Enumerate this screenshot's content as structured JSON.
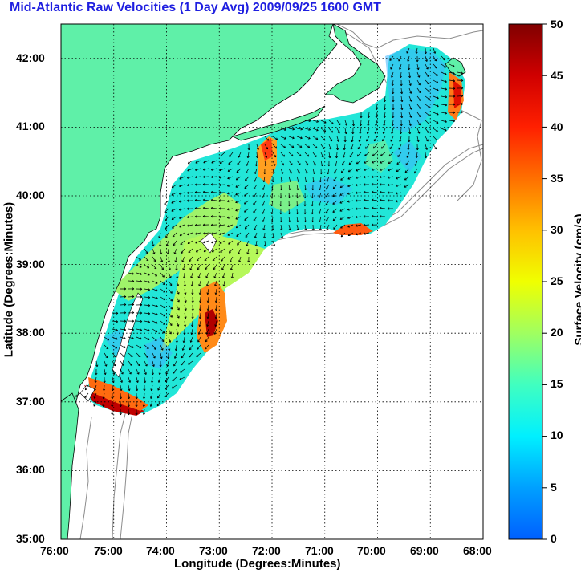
{
  "title": "Mid-Atlantic Raw Velocities (1 Day Avg) 2009/09/25 1600 GMT",
  "xaxis": {
    "label": "Longitude (Degrees:Minutes)",
    "ticks": [
      "76:00",
      "75:00",
      "74:00",
      "73:00",
      "72:00",
      "71:00",
      "70:00",
      "69:00",
      "68:00"
    ]
  },
  "yaxis": {
    "label": "Latitude (Degrees:Minutes)",
    "ticks": [
      "42:00",
      "41:00",
      "40:00",
      "39:00",
      "38:00",
      "37:00",
      "36:00",
      "35:00"
    ]
  },
  "colorbar": {
    "label": "Surface Velocity (cm/s)",
    "ticks": [
      "50",
      "45",
      "40",
      "35",
      "30",
      "25",
      "20",
      "15",
      "10",
      "5",
      "0"
    ],
    "range": [
      0,
      50
    ]
  },
  "colors": {
    "title": "#1f1fe0",
    "land": "#5ff0a8",
    "ocean": "#ffffff",
    "bathymetry": "#8c8c8c",
    "grid": "#000000"
  },
  "map_extent": {
    "lon": [
      -76,
      -68
    ],
    "lat": [
      35,
      42.5
    ]
  }
}
